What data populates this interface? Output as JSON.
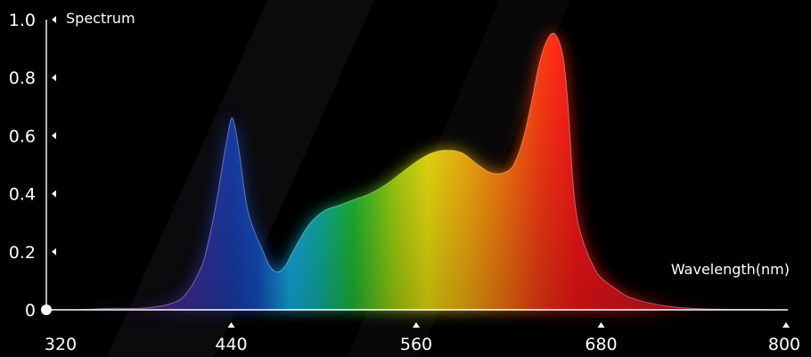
{
  "chart_data": {
    "type": "area",
    "ylabel": "Spectrum",
    "xlabel": "Wavelength(nm)",
    "xlim": [
      320,
      800
    ],
    "ylim": [
      0,
      1.0
    ],
    "x_ticks": [
      320,
      440,
      560,
      680,
      800
    ],
    "y_ticks": [
      "0",
      "0.2",
      "0.4",
      "0.6",
      "0.8",
      "1.0"
    ],
    "y_tick_values": [
      0,
      0.2,
      0.4,
      0.6,
      0.8,
      1.0
    ],
    "grid": false,
    "colors": {
      "background": "#000000",
      "axis": "#ffffff",
      "violet": "#4a2a9a",
      "blue": "#1550c8",
      "cyan": "#14b4ee",
      "green": "#1dc234",
      "yellow": "#f4ea10",
      "orange": "#ff7a10",
      "red": "#ff1418"
    },
    "series": [
      {
        "x": [
          320,
          340,
          360,
          380,
          390,
          400,
          410,
          420,
          425,
          430,
          435,
          438,
          440,
          442,
          445,
          450,
          455,
          460,
          465,
          470,
          475,
          480,
          490,
          500,
          510,
          520,
          530,
          540,
          550,
          560,
          570,
          580,
          590,
          600,
          610,
          620,
          625,
          630,
          635,
          640,
          645,
          650,
          655,
          658,
          660,
          662,
          665,
          670,
          675,
          680,
          690,
          700,
          720,
          740,
          760,
          780,
          800
        ],
        "values": [
          0.0,
          0.0,
          0.005,
          0.005,
          0.01,
          0.02,
          0.05,
          0.14,
          0.23,
          0.36,
          0.52,
          0.61,
          0.66,
          0.64,
          0.55,
          0.36,
          0.27,
          0.21,
          0.15,
          0.13,
          0.15,
          0.2,
          0.29,
          0.34,
          0.36,
          0.38,
          0.4,
          0.43,
          0.47,
          0.51,
          0.54,
          0.55,
          0.54,
          0.5,
          0.47,
          0.48,
          0.52,
          0.6,
          0.72,
          0.85,
          0.93,
          0.95,
          0.88,
          0.74,
          0.58,
          0.42,
          0.3,
          0.21,
          0.15,
          0.11,
          0.07,
          0.04,
          0.015,
          0.005,
          0.002,
          0.001,
          0.0
        ]
      }
    ]
  }
}
